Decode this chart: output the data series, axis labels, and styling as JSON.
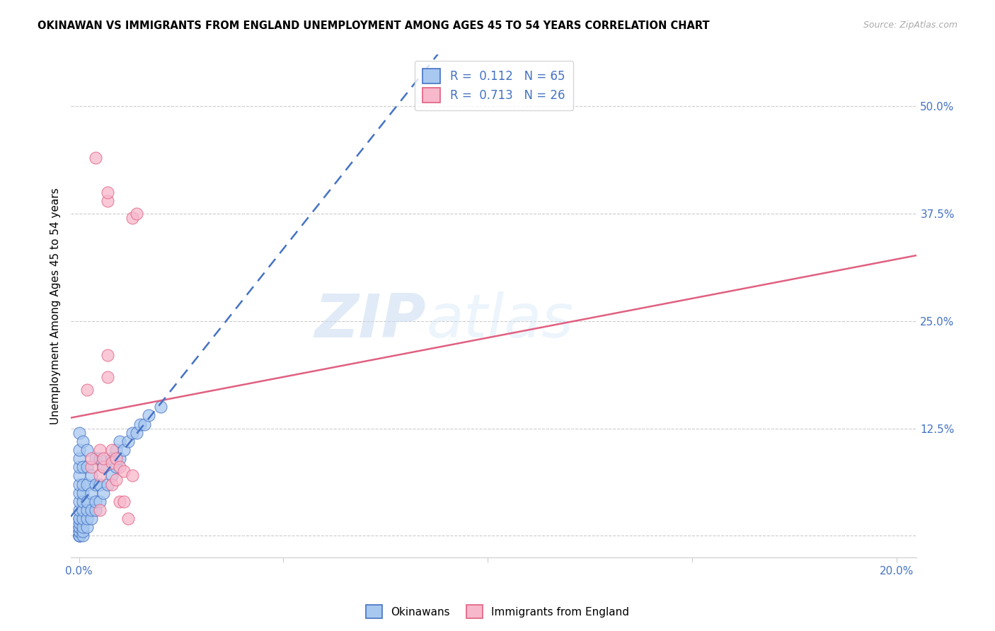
{
  "title": "OKINAWAN VS IMMIGRANTS FROM ENGLAND UNEMPLOYMENT AMONG AGES 45 TO 54 YEARS CORRELATION CHART",
  "source": "Source: ZipAtlas.com",
  "ylabel": "Unemployment Among Ages 45 to 54 years",
  "xlim": [
    -0.002,
    0.205
  ],
  "ylim": [
    -0.025,
    0.56
  ],
  "xticks": [
    0.0,
    0.05,
    0.1,
    0.15,
    0.2
  ],
  "yticks": [
    0.0,
    0.125,
    0.25,
    0.375,
    0.5
  ],
  "xticklabels": [
    "0.0%",
    "",
    "",
    "",
    "20.0%"
  ],
  "yticklabels": [
    "",
    "12.5%",
    "25.0%",
    "37.5%",
    "50.0%"
  ],
  "color_blue_fill": "#a8c8f0",
  "color_blue_edge": "#4472c4",
  "color_pink_fill": "#f8b8cc",
  "color_pink_edge": "#e06080",
  "color_line_blue": "#4472c4",
  "color_line_pink": "#e06080",
  "watermark_zip": "ZIP",
  "watermark_atlas": "atlas",
  "R_ok": 0.112,
  "N_ok": 65,
  "R_en": 0.713,
  "N_en": 26,
  "okinawan_x": [
    0.0,
    0.0,
    0.0,
    0.0,
    0.0,
    0.0,
    0.0,
    0.0,
    0.0,
    0.0,
    0.0,
    0.0,
    0.0,
    0.0,
    0.0,
    0.0,
    0.0,
    0.0,
    0.0,
    0.0,
    0.001,
    0.001,
    0.001,
    0.001,
    0.001,
    0.001,
    0.001,
    0.001,
    0.001,
    0.001,
    0.002,
    0.002,
    0.002,
    0.002,
    0.002,
    0.002,
    0.002,
    0.003,
    0.003,
    0.003,
    0.003,
    0.004,
    0.004,
    0.004,
    0.004,
    0.005,
    0.005,
    0.005,
    0.006,
    0.006,
    0.007,
    0.008,
    0.008,
    0.009,
    0.009,
    0.01,
    0.01,
    0.011,
    0.012,
    0.013,
    0.014,
    0.015,
    0.016,
    0.017,
    0.02
  ],
  "okinawan_y": [
    0.0,
    0.0,
    0.0,
    0.0,
    0.005,
    0.005,
    0.01,
    0.01,
    0.015,
    0.02,
    0.02,
    0.03,
    0.04,
    0.05,
    0.06,
    0.07,
    0.08,
    0.09,
    0.1,
    0.12,
    0.0,
    0.005,
    0.01,
    0.02,
    0.03,
    0.04,
    0.05,
    0.06,
    0.08,
    0.11,
    0.01,
    0.02,
    0.03,
    0.04,
    0.06,
    0.08,
    0.1,
    0.02,
    0.03,
    0.05,
    0.07,
    0.03,
    0.04,
    0.06,
    0.09,
    0.04,
    0.06,
    0.09,
    0.05,
    0.08,
    0.06,
    0.07,
    0.09,
    0.08,
    0.1,
    0.09,
    0.11,
    0.1,
    0.11,
    0.12,
    0.12,
    0.13,
    0.13,
    0.14,
    0.15
  ],
  "england_x": [
    0.002,
    0.003,
    0.003,
    0.004,
    0.005,
    0.005,
    0.005,
    0.006,
    0.006,
    0.007,
    0.007,
    0.007,
    0.007,
    0.008,
    0.008,
    0.008,
    0.009,
    0.009,
    0.01,
    0.01,
    0.011,
    0.011,
    0.012,
    0.013,
    0.013,
    0.014
  ],
  "england_y": [
    0.17,
    0.08,
    0.09,
    0.44,
    0.03,
    0.07,
    0.1,
    0.08,
    0.09,
    0.185,
    0.39,
    0.4,
    0.21,
    0.06,
    0.085,
    0.1,
    0.065,
    0.09,
    0.04,
    0.08,
    0.04,
    0.075,
    0.02,
    0.07,
    0.37,
    0.375
  ]
}
